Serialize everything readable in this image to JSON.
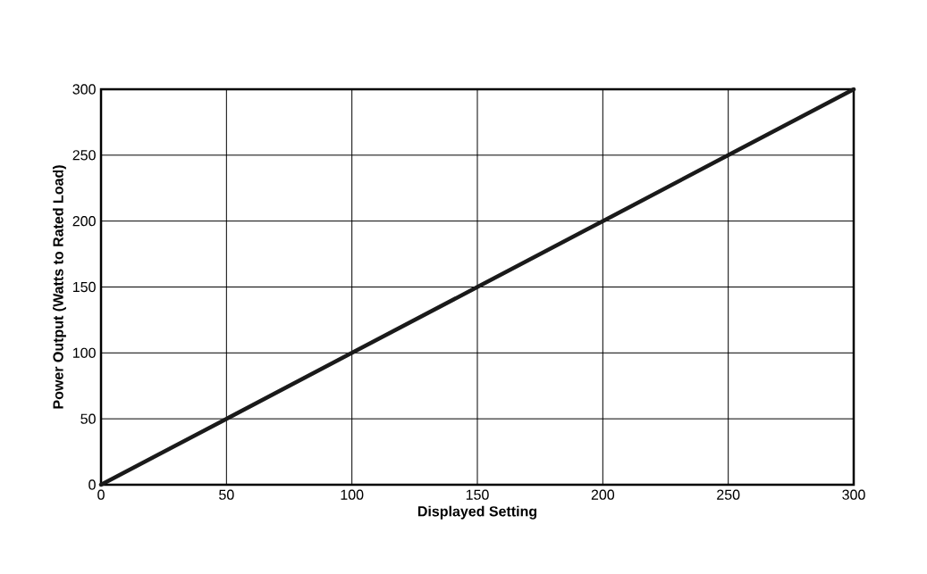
{
  "chart_data": {
    "type": "line",
    "xlabel": "Displayed Setting",
    "ylabel": "Power Output (Watts to Rated Load)",
    "x": [
      0,
      50,
      100,
      150,
      200,
      250,
      300
    ],
    "series": [
      {
        "color": "#1a1a1a",
        "values": [
          0,
          50,
          100,
          150,
          200,
          250,
          300
        ]
      }
    ],
    "xlim": [
      0,
      300
    ],
    "ylim": [
      0,
      300
    ],
    "xticks": [
      0,
      50,
      100,
      150,
      200,
      250,
      300
    ],
    "yticks": [
      0,
      50,
      100,
      150,
      200,
      250,
      300
    ],
    "grid": true,
    "marker": "none",
    "line_style": "solid"
  }
}
